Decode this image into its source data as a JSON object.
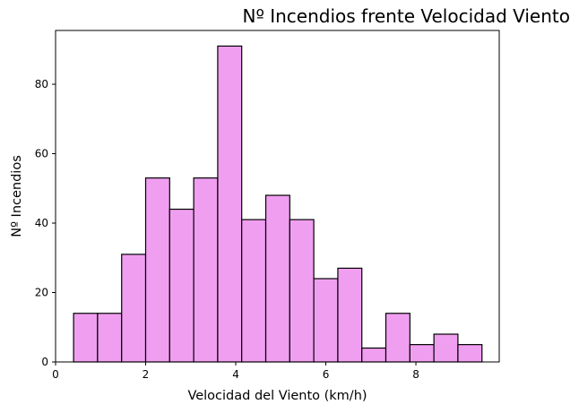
{
  "chart_data": {
    "type": "histogram",
    "title": "Nº Incendios frente Velocidad Viento",
    "xlabel": "Velocidad del Viento (km/h)",
    "ylabel": "Nº Incendios",
    "xlim": [
      0,
      9.85
    ],
    "ylim": [
      0,
      95.5
    ],
    "x_ticks": [
      0,
      2,
      4,
      6,
      8
    ],
    "y_ticks": [
      0,
      20,
      40,
      60,
      80
    ],
    "x_tick_labels": [
      "0",
      "2",
      "4",
      "6",
      "8"
    ],
    "y_tick_labels": [
      "0",
      "20",
      "40",
      "60",
      "80"
    ],
    "grid": false,
    "bar_color": "#f09ff0",
    "edge_color": "#000000",
    "bin_edges": [
      0.4,
      0.933,
      1.467,
      2.0,
      2.533,
      3.067,
      3.6,
      4.133,
      4.667,
      5.2,
      5.733,
      6.267,
      6.8,
      7.333,
      7.867,
      8.4,
      8.933,
      9.467
    ],
    "values": [
      14,
      14,
      31,
      53,
      44,
      53,
      91,
      41,
      48,
      41,
      24,
      27,
      4,
      14,
      5,
      8,
      5
    ]
  }
}
